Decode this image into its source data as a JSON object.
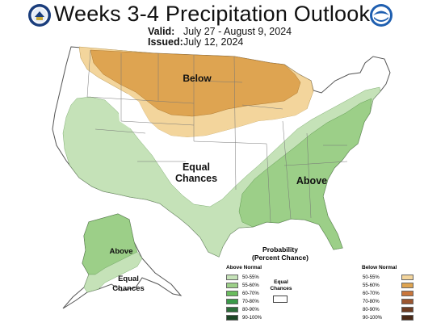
{
  "title": "Weeks 3-4 Precipitation Outlook",
  "valid_label": "Valid:",
  "valid_value": "July 27 - August 9, 2024",
  "issued_label": "Issued:",
  "issued_value": "July 12, 2024",
  "region_labels": {
    "below": "Below",
    "equal_l1": "Equal",
    "equal_l2": "Chances",
    "above": "Above",
    "alaska_above": "Above",
    "alaska_equal_l1": "Equal",
    "alaska_equal_l2": "Chances"
  },
  "legend": {
    "title_l1": "Probability",
    "title_l2": "(Percent Chance)",
    "above_header": "Above Normal",
    "below_header": "Below Normal",
    "equal_l1": "Equal",
    "equal_l2": "Chances",
    "above": [
      {
        "label": "50-55%",
        "color": "#c5e2b8"
      },
      {
        "label": "55-60%",
        "color": "#9ccf88"
      },
      {
        "label": "60-70%",
        "color": "#6abc5e"
      },
      {
        "label": "70-80%",
        "color": "#3a9a49"
      },
      {
        "label": "80-90%",
        "color": "#2c6d3a"
      },
      {
        "label": "90-100%",
        "color": "#1b4625"
      }
    ],
    "below": [
      {
        "label": "50-55%",
        "color": "#f3d59c"
      },
      {
        "label": "55-60%",
        "color": "#dea451"
      },
      {
        "label": "60-70%",
        "color": "#c9763c"
      },
      {
        "label": "70-80%",
        "color": "#9b5630"
      },
      {
        "label": "80-90%",
        "color": "#6e3c22"
      },
      {
        "label": "90-100%",
        "color": "#4a2917"
      }
    ]
  },
  "icons": {
    "left_logo": "department-of-commerce-seal-icon",
    "right_logo": "noaa-logo-icon"
  }
}
